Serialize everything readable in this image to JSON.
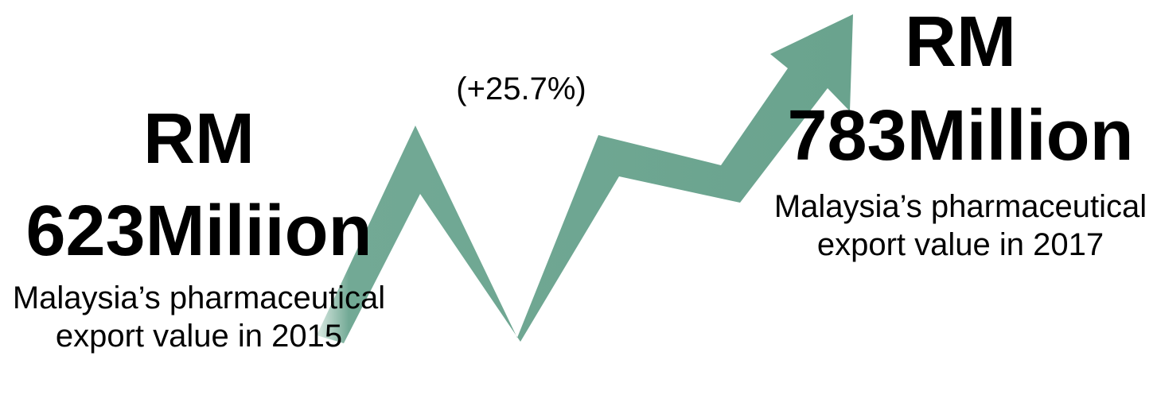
{
  "left_stat": {
    "currency": "RM",
    "value": "623Miliion",
    "description": "Malaysia’s pharmaceutical export value in 2015"
  },
  "right_stat": {
    "currency": "RM",
    "value": "783Million",
    "description": "Malaysia’s pharmaceutical export value in 2017"
  },
  "change": {
    "label": "(+25.7%)"
  },
  "colors": {
    "arrow": "#72a995",
    "arrow_dark": "#5f9782",
    "text": "#000000"
  },
  "icons": {
    "arrow": "trend-up-arrow-icon"
  }
}
